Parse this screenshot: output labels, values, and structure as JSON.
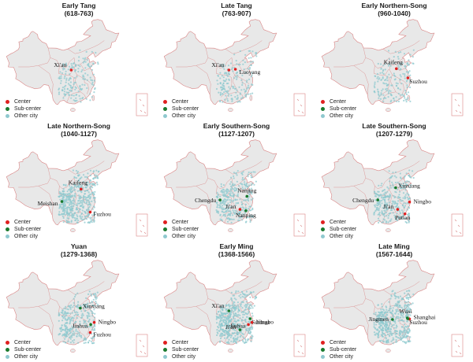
{
  "colors": {
    "center": "#e02020",
    "sub_center": "#1a7a2e",
    "other_city": "#8fc9cf",
    "land": "#e8e8e8",
    "border": "#d98585"
  },
  "legend": [
    {
      "key": "center",
      "label": "Center"
    },
    {
      "key": "sub_center",
      "label": "Sub-center"
    },
    {
      "key": "other_city",
      "label": "Other city"
    }
  ],
  "panels": [
    {
      "title": "Early Tang",
      "period": "(618-763)",
      "density": "low",
      "cities": [
        {
          "name": "Xi'an",
          "type": "center",
          "lon": 108.9,
          "lat": 34.3
        }
      ]
    },
    {
      "title": "Late Tang",
      "period": "(763-907)",
      "density": "low",
      "cities": [
        {
          "name": "Xi'an",
          "type": "center",
          "lon": 108.9,
          "lat": 34.3
        },
        {
          "name": "Luoyang",
          "type": "center",
          "lon": 112.5,
          "lat": 34.6
        }
      ]
    },
    {
      "title": "Early Northern-Song",
      "period": "(960-1040)",
      "density": "low",
      "cities": [
        {
          "name": "Kaifeng",
          "type": "center",
          "lon": 114.3,
          "lat": 34.8
        },
        {
          "name": "Suzhou",
          "type": "center",
          "lon": 120.6,
          "lat": 31.3
        }
      ]
    },
    {
      "title": "Late Northern-Song",
      "period": "(1040-1127)",
      "density": "high",
      "cities": [
        {
          "name": "Kaifeng",
          "type": "center",
          "lon": 114.3,
          "lat": 34.8
        },
        {
          "name": "Meishan",
          "type": "sub_center",
          "lon": 103.8,
          "lat": 30.1
        },
        {
          "name": "Fuzhou",
          "type": "center",
          "lon": 119.3,
          "lat": 26.1
        }
      ]
    },
    {
      "title": "Early Southern-Song",
      "period": "(1127-1207)",
      "density": "medium",
      "cities": [
        {
          "name": "Nanjing",
          "type": "sub_center",
          "lon": 118.8,
          "lat": 32.1
        },
        {
          "name": "Chengdu",
          "type": "sub_center",
          "lon": 104.1,
          "lat": 30.7
        },
        {
          "name": "Ji'an",
          "type": "center",
          "lon": 115.0,
          "lat": 27.1
        },
        {
          "name": "Nanping",
          "type": "sub_center",
          "lon": 118.2,
          "lat": 26.6
        }
      ]
    },
    {
      "title": "Late Southern-Song",
      "period": "(1207-1279)",
      "density": "medium",
      "cities": [
        {
          "name": "Xinxiang",
          "type": "sub_center",
          "lon": 113.9,
          "lat": 35.3
        },
        {
          "name": "Chengdu",
          "type": "sub_center",
          "lon": 104.1,
          "lat": 30.7
        },
        {
          "name": "Ningbo",
          "type": "center",
          "lon": 121.5,
          "lat": 29.9
        },
        {
          "name": "Ji'an",
          "type": "center",
          "lon": 115.0,
          "lat": 27.1
        },
        {
          "name": "Putian",
          "type": "center",
          "lon": 119.0,
          "lat": 25.4
        }
      ]
    },
    {
      "title": "Yuan",
      "period": "(1279-1368)",
      "density": "medium",
      "cities": [
        {
          "name": "Xinxiang",
          "type": "sub_center",
          "lon": 113.9,
          "lat": 35.3
        },
        {
          "name": "Jinhua",
          "type": "sub_center",
          "lon": 119.6,
          "lat": 29.1
        },
        {
          "name": "Ningbo",
          "type": "center",
          "lon": 121.5,
          "lat": 29.9
        },
        {
          "name": "Fuzhou",
          "type": "center",
          "lon": 119.3,
          "lat": 26.1
        }
      ]
    },
    {
      "title": "Early Ming",
      "period": "(1368-1566)",
      "density": "high",
      "cities": [
        {
          "name": "Xi'an",
          "type": "sub_center",
          "lon": 108.9,
          "lat": 34.3
        },
        {
          "name": "Suzhou",
          "type": "sub_center",
          "lon": 120.6,
          "lat": 31.3
        },
        {
          "name": "Ningbo",
          "type": "center",
          "lon": 121.5,
          "lat": 29.9
        },
        {
          "name": "Jinhua",
          "type": "center",
          "lon": 119.6,
          "lat": 29.1
        },
        {
          "name": "Ji'an",
          "type": "sub_center",
          "lon": 115.0,
          "lat": 27.1
        }
      ]
    },
    {
      "title": "Late Ming",
      "period": "(1567-1644)",
      "density": "high",
      "cities": [
        {
          "name": "Wuxi",
          "type": "sub_center",
          "lon": 120.3,
          "lat": 31.6
        },
        {
          "name": "Shanghai",
          "type": "center",
          "lon": 121.5,
          "lat": 31.2
        },
        {
          "name": "Jingmen",
          "type": "sub_center",
          "lon": 112.2,
          "lat": 31.0
        },
        {
          "name": "Suzhou",
          "type": "sub_center",
          "lon": 120.6,
          "lat": 31.3
        }
      ]
    }
  ]
}
